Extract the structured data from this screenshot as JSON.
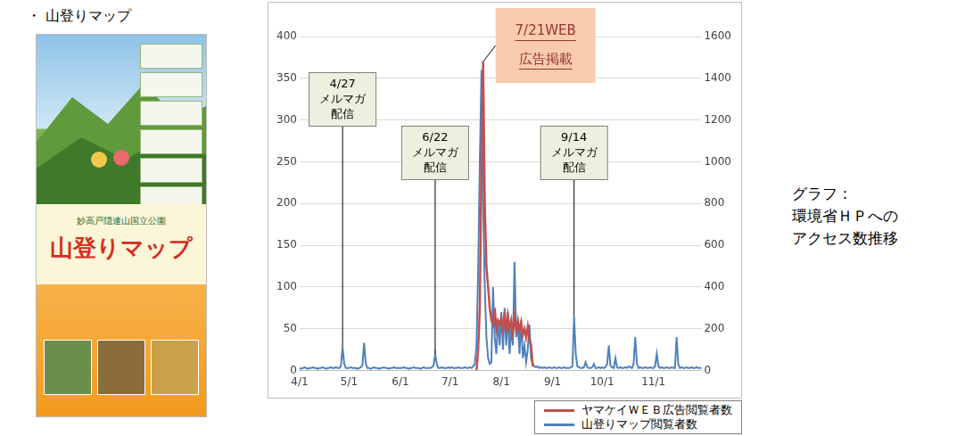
{
  "heading": "・ 山登りマップ",
  "poster": {
    "subtitle": "妙高戸隠連山国立公園",
    "title": "山登りマップ"
  },
  "side_text": [
    "グラフ：",
    "環境省ＨＰへの",
    "アクセス数推移"
  ],
  "chart_data": {
    "type": "line",
    "categories": [
      "4/1",
      null,
      null,
      null,
      null,
      null,
      null,
      null,
      null,
      null,
      null,
      null,
      null,
      null,
      null,
      null,
      null,
      null,
      null,
      null,
      null,
      null,
      null,
      null,
      null,
      null,
      null,
      null,
      null,
      null,
      "5/1",
      null,
      null,
      null,
      null,
      null,
      null,
      null,
      null,
      null,
      null,
      null,
      null,
      null,
      null,
      null,
      null,
      null,
      null,
      null,
      null,
      null,
      null,
      null,
      null,
      null,
      null,
      null,
      null,
      null,
      null,
      "6/1",
      null,
      null,
      null,
      null,
      null,
      null,
      null,
      null,
      null,
      null,
      null,
      null,
      null,
      null,
      null,
      null,
      null,
      null,
      null,
      null,
      null,
      null,
      null,
      null,
      null,
      null,
      null,
      null,
      null,
      "7/1",
      null,
      null,
      null,
      null,
      null,
      null,
      null,
      null,
      null,
      null,
      null,
      null,
      null,
      null,
      null,
      null,
      null,
      null,
      null,
      null,
      null,
      null,
      null,
      null,
      null,
      null,
      null,
      null,
      null,
      null,
      "8/1",
      null,
      null,
      null,
      null,
      null,
      null,
      null,
      null,
      null,
      null,
      null,
      null,
      null,
      null,
      null,
      null,
      null,
      null,
      null,
      null,
      null,
      null,
      null,
      null,
      null,
      null,
      null,
      null,
      null,
      null,
      "9/1",
      null,
      null,
      null,
      null,
      null,
      null,
      null,
      null,
      null,
      null,
      null,
      null,
      null,
      null,
      null,
      null,
      null,
      null,
      null,
      null,
      null,
      null,
      null,
      null,
      null,
      null,
      null,
      null,
      null,
      "10/1",
      null,
      null,
      null,
      null,
      null,
      null,
      null,
      null,
      null,
      null,
      null,
      null,
      null,
      null,
      null,
      null,
      null,
      null,
      null,
      null,
      null,
      null,
      null,
      null,
      null,
      null,
      null,
      null,
      null,
      null,
      "11/1",
      null,
      null,
      null,
      null,
      null,
      null,
      null,
      null,
      null,
      null,
      null,
      null,
      null,
      null,
      null,
      null,
      null,
      null,
      null,
      null,
      null,
      null,
      null,
      null,
      null,
      null,
      null,
      null,
      null
    ],
    "series": [
      {
        "name": "ヤマケイＷＥＢ広告閲覧者数",
        "color": "#c0504d",
        "axis": "y2",
        "values": [
          null,
          null,
          null,
          null,
          null,
          null,
          null,
          null,
          null,
          null,
          null,
          null,
          null,
          null,
          null,
          null,
          null,
          null,
          null,
          null,
          null,
          null,
          null,
          null,
          null,
          null,
          null,
          null,
          null,
          null,
          null,
          null,
          null,
          null,
          null,
          null,
          null,
          null,
          null,
          null,
          null,
          null,
          null,
          null,
          null,
          null,
          null,
          null,
          null,
          null,
          null,
          null,
          null,
          null,
          null,
          null,
          null,
          null,
          null,
          null,
          null,
          null,
          null,
          null,
          null,
          null,
          null,
          null,
          null,
          null,
          null,
          null,
          null,
          null,
          null,
          null,
          null,
          null,
          null,
          null,
          null,
          null,
          null,
          null,
          null,
          null,
          null,
          null,
          null,
          null,
          null,
          null,
          null,
          null,
          null,
          null,
          null,
          null,
          null,
          null,
          null,
          null,
          null,
          null,
          null,
          null,
          null,
          0,
          100,
          300,
          1000,
          1480,
          800,
          500,
          400,
          300,
          240,
          220,
          300,
          200,
          240,
          220,
          250,
          200,
          280,
          180,
          260,
          200,
          240,
          180,
          260,
          200,
          240,
          190,
          230,
          170,
          200,
          160,
          210,
          150,
          120,
          20,
          null,
          null,
          null,
          null,
          null,
          null,
          null,
          null,
          null,
          null,
          null,
          null,
          null,
          null,
          null,
          null,
          null,
          null,
          null,
          null,
          null,
          null,
          null,
          null,
          null,
          null,
          null,
          null,
          null,
          null,
          null,
          null,
          null,
          null,
          null,
          null,
          null,
          null,
          null,
          null,
          null,
          null,
          null,
          null,
          null,
          null,
          null,
          null,
          null,
          null,
          null,
          null,
          null,
          null,
          null,
          null,
          null,
          null,
          null,
          null,
          null,
          null,
          null,
          null,
          null,
          null,
          null,
          null,
          null,
          null,
          null,
          null,
          null,
          null,
          null,
          null,
          null,
          null,
          null,
          null,
          null,
          null,
          null,
          null,
          null,
          null,
          null,
          null,
          null,
          null,
          null,
          null,
          null,
          null,
          null,
          null,
          null,
          null,
          null,
          null,
          null,
          null
        ]
      },
      {
        "name": "山登りマップ閲覧者数",
        "color": "#4f81bd",
        "values": [
          3,
          2,
          3,
          4,
          3,
          2,
          3,
          3,
          4,
          3,
          3,
          2,
          3,
          3,
          4,
          3,
          2,
          3,
          3,
          4,
          3,
          3,
          4,
          3,
          3,
          5,
          28,
          8,
          3,
          3,
          3,
          4,
          3,
          3,
          3,
          2,
          3,
          4,
          6,
          33,
          9,
          3,
          3,
          2,
          3,
          4,
          3,
          3,
          2,
          3,
          3,
          4,
          3,
          3,
          2,
          3,
          3,
          4,
          3,
          3,
          3,
          3,
          3,
          4,
          3,
          3,
          2,
          3,
          3,
          4,
          3,
          3,
          3,
          2,
          3,
          4,
          3,
          3,
          3,
          3,
          4,
          6,
          20,
          7,
          3,
          3,
          4,
          3,
          3,
          3,
          4,
          3,
          4,
          3,
          3,
          3,
          4,
          3,
          3,
          3,
          4,
          3,
          3,
          4,
          3,
          5,
          8,
          30,
          120,
          250,
          360,
          200,
          100,
          40,
          15,
          8,
          10,
          100,
          40,
          20,
          60,
          30,
          70,
          25,
          75,
          30,
          70,
          20,
          50,
          30,
          130,
          40,
          55,
          20,
          60,
          15,
          30,
          10,
          25,
          55,
          15,
          8,
          5,
          4,
          5,
          3,
          4,
          3,
          4,
          3,
          3,
          4,
          3,
          3,
          4,
          3,
          3,
          4,
          3,
          3,
          4,
          3,
          3,
          3,
          4,
          5,
          65,
          20,
          5,
          4,
          3,
          3,
          4,
          10,
          4,
          3,
          3,
          4,
          8,
          3,
          3,
          4,
          3,
          4,
          3,
          4,
          8,
          30,
          6,
          4,
          3,
          15,
          4,
          3,
          4,
          3,
          3,
          4,
          3,
          5,
          4,
          3,
          8,
          40,
          8,
          3,
          4,
          3,
          3,
          4,
          3,
          3,
          4,
          3,
          3,
          5,
          20,
          5,
          3,
          4,
          3,
          3,
          4,
          3,
          3,
          4,
          3,
          3,
          40,
          8,
          3,
          4,
          3,
          3,
          4,
          3,
          3,
          4,
          3,
          3,
          4,
          3,
          3,
          3
        ]
      }
    ],
    "ylim": [
      0,
      400
    ],
    "yticks": [
      0,
      50,
      100,
      150,
      200,
      250,
      300,
      350,
      400
    ],
    "y2lim": [
      0,
      1600
    ],
    "y2ticks": [
      0,
      200,
      400,
      600,
      800,
      1000,
      1200,
      1400,
      1600
    ],
    "grid": true,
    "legend": "bottom right",
    "annotations": [
      {
        "text": [
          "4/27",
          "メルマガ",
          "配信"
        ]
      },
      {
        "text": [
          "6/22",
          "メルマガ",
          "配信"
        ]
      },
      {
        "text": [
          "7/21WEB",
          "広告掲載"
        ]
      },
      {
        "text": [
          "9/14",
          "メルマガ",
          "配信"
        ]
      }
    ]
  }
}
